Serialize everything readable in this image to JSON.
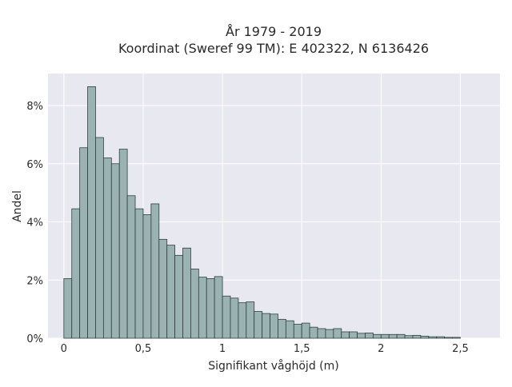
{
  "chart_data": {
    "type": "bar",
    "title": [
      "År 1979 - 2019",
      "Koordinat (Sweref 99 TM): E 402322, N 6136426"
    ],
    "xlabel": "Signifikant våghöjd (m)",
    "ylabel": "Andel",
    "bin_width": 0.05,
    "x_start": 0.0,
    "xlim": [
      -0.1,
      2.75
    ],
    "ylim": [
      0,
      9.1
    ],
    "grid": true,
    "x_ticks": [
      {
        "value": 0,
        "label": "0"
      },
      {
        "value": 0.5,
        "label": "0,5"
      },
      {
        "value": 1,
        "label": "1"
      },
      {
        "value": 1.5,
        "label": "1,5"
      },
      {
        "value": 2,
        "label": "2"
      },
      {
        "value": 2.5,
        "label": "2,5"
      }
    ],
    "y_ticks": [
      {
        "value": 0,
        "label": "0%"
      },
      {
        "value": 2,
        "label": "2%"
      },
      {
        "value": 4,
        "label": "4%"
      },
      {
        "value": 6,
        "label": "6%"
      },
      {
        "value": 8,
        "label": "8%"
      }
    ],
    "values": [
      2.05,
      4.45,
      6.55,
      8.65,
      6.9,
      6.2,
      6.0,
      6.5,
      4.9,
      4.45,
      4.25,
      4.62,
      3.4,
      3.2,
      2.85,
      3.1,
      2.38,
      2.1,
      2.05,
      2.12,
      1.45,
      1.38,
      1.22,
      1.25,
      0.92,
      0.85,
      0.83,
      0.65,
      0.6,
      0.48,
      0.52,
      0.38,
      0.33,
      0.3,
      0.33,
      0.22,
      0.22,
      0.17,
      0.18,
      0.13,
      0.13,
      0.13,
      0.13,
      0.09,
      0.1,
      0.07,
      0.05,
      0.05,
      0.03,
      0.03
    ],
    "colors": {
      "bar_fill": "#9ab3b2",
      "bar_stroke": "#2f3f3e",
      "plot_bg": "#e8e8f0",
      "grid": "#ffffff",
      "text": "#2a2a2a"
    }
  }
}
